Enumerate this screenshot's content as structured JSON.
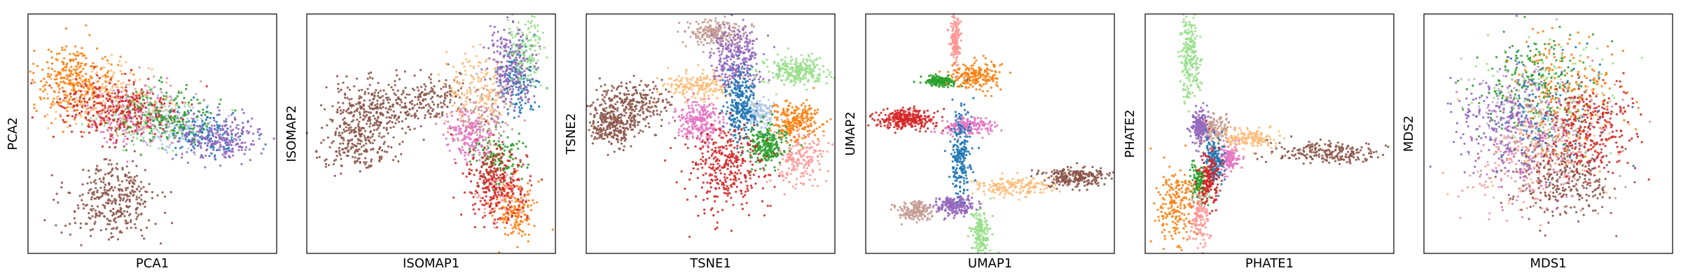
{
  "figure": {
    "palette": {
      "blue": "#1f77b4",
      "light_blue": "#aec7e8",
      "orange": "#ff7f0e",
      "light_orange": "#ffbb78",
      "green": "#2ca02c",
      "light_green": "#98df8a",
      "red": "#d62728",
      "light_red": "#ff9896",
      "purple": "#9467bd",
      "light_purple": "#c5b0d5",
      "brown": "#8c564b",
      "light_brown": "#c49c94",
      "pink": "#e377c2",
      "light_pink": "#f7b6d2",
      "gray": "#7f7f7f",
      "olive": "#bcbd22"
    }
  },
  "chart_data": [
    {
      "type": "scatter",
      "title": "",
      "xlabel": "PCA1",
      "ylabel": "PCA2",
      "xlim": [
        0,
        1
      ],
      "ylim": [
        0,
        1
      ],
      "ticks": "none",
      "grid": false,
      "clusters": [
        {
          "color": "orange",
          "center": [
            0.18,
            0.72
          ],
          "spread": [
            0.08,
            0.07
          ],
          "density": 1.0
        },
        {
          "color": "light_orange",
          "center": [
            0.3,
            0.66
          ],
          "spread": [
            0.1,
            0.06
          ],
          "density": 0.8
        },
        {
          "color": "red",
          "center": [
            0.34,
            0.6
          ],
          "spread": [
            0.12,
            0.07
          ],
          "density": 1.0
        },
        {
          "color": "pink",
          "center": [
            0.42,
            0.58
          ],
          "spread": [
            0.1,
            0.06
          ],
          "density": 0.6
        },
        {
          "color": "green",
          "center": [
            0.55,
            0.58
          ],
          "spread": [
            0.1,
            0.06
          ],
          "density": 0.6
        },
        {
          "color": "light_green",
          "center": [
            0.5,
            0.56
          ],
          "spread": [
            0.1,
            0.05
          ],
          "density": 0.5
        },
        {
          "color": "light_blue",
          "center": [
            0.62,
            0.52
          ],
          "spread": [
            0.09,
            0.05
          ],
          "density": 0.5
        },
        {
          "color": "blue",
          "center": [
            0.72,
            0.5
          ],
          "spread": [
            0.08,
            0.05
          ],
          "density": 0.5
        },
        {
          "color": "purple",
          "center": [
            0.78,
            0.48
          ],
          "spread": [
            0.08,
            0.05
          ],
          "density": 0.8
        },
        {
          "color": "light_brown",
          "center": [
            0.45,
            0.6
          ],
          "spread": [
            0.12,
            0.07
          ],
          "density": 0.4
        },
        {
          "color": "brown",
          "center": [
            0.34,
            0.22
          ],
          "spread": [
            0.09,
            0.08
          ],
          "density": 1.2
        }
      ]
    },
    {
      "type": "scatter",
      "title": "",
      "xlabel": "ISOMAP1",
      "ylabel": "ISOMAP2",
      "xlim": [
        0,
        1
      ],
      "ylim": [
        0,
        1
      ],
      "ticks": "none",
      "grid": false,
      "clusters": [
        {
          "color": "brown",
          "center": [
            0.26,
            0.6
          ],
          "spread": [
            0.09,
            0.06
          ],
          "density": 1.0
        },
        {
          "color": "brown",
          "center": [
            0.2,
            0.46
          ],
          "spread": [
            0.07,
            0.05
          ],
          "density": 0.7
        },
        {
          "color": "brown",
          "center": [
            0.48,
            0.64
          ],
          "spread": [
            0.07,
            0.05
          ],
          "density": 0.6
        },
        {
          "color": "light_orange",
          "center": [
            0.68,
            0.68
          ],
          "spread": [
            0.06,
            0.08
          ],
          "density": 0.6
        },
        {
          "color": "purple",
          "center": [
            0.82,
            0.78
          ],
          "spread": [
            0.05,
            0.08
          ],
          "density": 0.8
        },
        {
          "color": "light_green",
          "center": [
            0.88,
            0.84
          ],
          "spread": [
            0.04,
            0.07
          ],
          "density": 0.6
        },
        {
          "color": "blue",
          "center": [
            0.84,
            0.72
          ],
          "spread": [
            0.04,
            0.07
          ],
          "density": 0.5
        },
        {
          "color": "light_brown",
          "center": [
            0.72,
            0.58
          ],
          "spread": [
            0.06,
            0.07
          ],
          "density": 0.5
        },
        {
          "color": "pink",
          "center": [
            0.66,
            0.5
          ],
          "spread": [
            0.05,
            0.05
          ],
          "density": 0.6
        },
        {
          "color": "green",
          "center": [
            0.76,
            0.4
          ],
          "spread": [
            0.05,
            0.06
          ],
          "density": 0.5
        },
        {
          "color": "red",
          "center": [
            0.76,
            0.3
          ],
          "spread": [
            0.06,
            0.08
          ],
          "density": 1.0
        },
        {
          "color": "orange",
          "center": [
            0.84,
            0.18
          ],
          "spread": [
            0.04,
            0.06
          ],
          "density": 0.5
        },
        {
          "color": "light_red",
          "center": [
            0.8,
            0.24
          ],
          "spread": [
            0.05,
            0.06
          ],
          "density": 0.4
        }
      ]
    },
    {
      "type": "scatter",
      "title": "",
      "xlabel": "TSNE1",
      "ylabel": "TSNE2",
      "xlim": [
        0,
        1
      ],
      "ylim": [
        0,
        1
      ],
      "ticks": "none",
      "grid": false,
      "clusters": [
        {
          "color": "brown",
          "center": [
            0.18,
            0.62
          ],
          "spread": [
            0.08,
            0.05
          ],
          "density": 1.0
        },
        {
          "color": "brown",
          "center": [
            0.1,
            0.53
          ],
          "spread": [
            0.04,
            0.04
          ],
          "density": 0.8
        },
        {
          "color": "light_orange",
          "center": [
            0.46,
            0.7
          ],
          "spread": [
            0.07,
            0.03
          ],
          "density": 0.7
        },
        {
          "color": "light_brown",
          "center": [
            0.52,
            0.92
          ],
          "spread": [
            0.06,
            0.03
          ],
          "density": 0.8
        },
        {
          "color": "purple",
          "center": [
            0.6,
            0.82
          ],
          "spread": [
            0.05,
            0.06
          ],
          "density": 1.0
        },
        {
          "color": "light_green",
          "center": [
            0.84,
            0.76
          ],
          "spread": [
            0.06,
            0.03
          ],
          "density": 0.9
        },
        {
          "color": "blue",
          "center": [
            0.62,
            0.62
          ],
          "spread": [
            0.03,
            0.07
          ],
          "density": 1.0
        },
        {
          "color": "light_blue",
          "center": [
            0.7,
            0.58
          ],
          "spread": [
            0.03,
            0.03
          ],
          "density": 0.5
        },
        {
          "color": "pink",
          "center": [
            0.46,
            0.55
          ],
          "spread": [
            0.05,
            0.04
          ],
          "density": 0.9
        },
        {
          "color": "orange",
          "center": [
            0.84,
            0.55
          ],
          "spread": [
            0.05,
            0.04
          ],
          "density": 0.8
        },
        {
          "color": "green",
          "center": [
            0.72,
            0.45
          ],
          "spread": [
            0.04,
            0.04
          ],
          "density": 0.9
        },
        {
          "color": "light_red",
          "center": [
            0.86,
            0.4
          ],
          "spread": [
            0.05,
            0.06
          ],
          "density": 0.7
        },
        {
          "color": "red",
          "center": [
            0.56,
            0.36
          ],
          "spread": [
            0.08,
            0.09
          ],
          "density": 1.2
        }
      ]
    },
    {
      "type": "scatter",
      "title": "",
      "xlabel": "UMAP1",
      "ylabel": "UMAP2",
      "xlim": [
        0,
        1
      ],
      "ylim": [
        0,
        1
      ],
      "ticks": "none",
      "grid": false,
      "clusters": [
        {
          "color": "light_red",
          "center": [
            0.36,
            0.88
          ],
          "spread": [
            0.01,
            0.06
          ],
          "density": 0.6
        },
        {
          "color": "green",
          "center": [
            0.3,
            0.72
          ],
          "spread": [
            0.03,
            0.01
          ],
          "density": 0.6
        },
        {
          "color": "orange",
          "center": [
            0.44,
            0.74
          ],
          "spread": [
            0.05,
            0.03
          ],
          "density": 0.7
        },
        {
          "color": "red",
          "center": [
            0.16,
            0.56
          ],
          "spread": [
            0.06,
            0.02
          ],
          "density": 1.0
        },
        {
          "color": "pink",
          "center": [
            0.4,
            0.53
          ],
          "spread": [
            0.05,
            0.02
          ],
          "density": 0.7
        },
        {
          "color": "blue",
          "center": [
            0.38,
            0.42
          ],
          "spread": [
            0.02,
            0.1
          ],
          "density": 0.8
        },
        {
          "color": "light_orange",
          "center": [
            0.58,
            0.28
          ],
          "spread": [
            0.08,
            0.02
          ],
          "density": 0.6
        },
        {
          "color": "brown",
          "center": [
            0.84,
            0.32
          ],
          "spread": [
            0.07,
            0.02
          ],
          "density": 0.9
        },
        {
          "color": "purple",
          "center": [
            0.36,
            0.2
          ],
          "spread": [
            0.04,
            0.02
          ],
          "density": 0.7
        },
        {
          "color": "light_brown",
          "center": [
            0.2,
            0.18
          ],
          "spread": [
            0.04,
            0.02
          ],
          "density": 0.6
        },
        {
          "color": "light_green",
          "center": [
            0.46,
            0.08
          ],
          "spread": [
            0.02,
            0.05
          ],
          "density": 0.6
        }
      ]
    },
    {
      "type": "scatter",
      "title": "",
      "xlabel": "PHATE1",
      "ylabel": "PHATE2",
      "xlim": [
        0,
        1
      ],
      "ylim": [
        0,
        1
      ],
      "ticks": "none",
      "grid": false,
      "clusters": [
        {
          "color": "light_green",
          "center": [
            0.18,
            0.82
          ],
          "spread": [
            0.02,
            0.1
          ],
          "density": 0.8
        },
        {
          "color": "purple",
          "center": [
            0.22,
            0.52
          ],
          "spread": [
            0.02,
            0.04
          ],
          "density": 0.6
        },
        {
          "color": "light_brown",
          "center": [
            0.28,
            0.52
          ],
          "spread": [
            0.03,
            0.03
          ],
          "density": 0.5
        },
        {
          "color": "light_orange",
          "center": [
            0.4,
            0.48
          ],
          "spread": [
            0.06,
            0.02
          ],
          "density": 0.6
        },
        {
          "color": "brown",
          "center": [
            0.74,
            0.42
          ],
          "spread": [
            0.12,
            0.02
          ],
          "density": 0.8
        },
        {
          "color": "pink",
          "center": [
            0.34,
            0.4
          ],
          "spread": [
            0.02,
            0.03
          ],
          "density": 0.5
        },
        {
          "color": "blue",
          "center": [
            0.28,
            0.38
          ],
          "spread": [
            0.02,
            0.05
          ],
          "density": 0.6
        },
        {
          "color": "red",
          "center": [
            0.26,
            0.32
          ],
          "spread": [
            0.02,
            0.06
          ],
          "density": 0.6
        },
        {
          "color": "green",
          "center": [
            0.22,
            0.3
          ],
          "spread": [
            0.02,
            0.04
          ],
          "density": 0.5
        },
        {
          "color": "orange",
          "center": [
            0.12,
            0.2
          ],
          "spread": [
            0.04,
            0.08
          ],
          "density": 0.7
        },
        {
          "color": "light_red",
          "center": [
            0.22,
            0.14
          ],
          "spread": [
            0.02,
            0.06
          ],
          "density": 0.5
        }
      ]
    },
    {
      "type": "scatter",
      "title": "",
      "xlabel": "MDS1",
      "ylabel": "MDS2",
      "xlim": [
        0,
        1
      ],
      "ylim": [
        0,
        1
      ],
      "ticks": "none",
      "grid": false,
      "clusters": [
        {
          "color": "purple",
          "center": [
            0.32,
            0.54
          ],
          "spread": [
            0.1,
            0.12
          ],
          "density": 0.8
        },
        {
          "color": "light_purple",
          "center": [
            0.4,
            0.6
          ],
          "spread": [
            0.12,
            0.12
          ],
          "density": 0.5
        },
        {
          "color": "green",
          "center": [
            0.44,
            0.72
          ],
          "spread": [
            0.1,
            0.1
          ],
          "density": 0.6
        },
        {
          "color": "light_green",
          "center": [
            0.5,
            0.66
          ],
          "spread": [
            0.12,
            0.12
          ],
          "density": 0.5
        },
        {
          "color": "blue",
          "center": [
            0.48,
            0.6
          ],
          "spread": [
            0.12,
            0.12
          ],
          "density": 0.5
        },
        {
          "color": "orange",
          "center": [
            0.58,
            0.68
          ],
          "spread": [
            0.12,
            0.12
          ],
          "density": 0.6
        },
        {
          "color": "light_orange",
          "center": [
            0.5,
            0.5
          ],
          "spread": [
            0.12,
            0.12
          ],
          "density": 0.5
        },
        {
          "color": "pink",
          "center": [
            0.46,
            0.46
          ],
          "spread": [
            0.12,
            0.12
          ],
          "density": 0.5
        },
        {
          "color": "light_brown",
          "center": [
            0.52,
            0.44
          ],
          "spread": [
            0.12,
            0.12
          ],
          "density": 0.5
        },
        {
          "color": "red",
          "center": [
            0.66,
            0.52
          ],
          "spread": [
            0.09,
            0.1
          ],
          "density": 1.0
        },
        {
          "color": "brown",
          "center": [
            0.56,
            0.3
          ],
          "spread": [
            0.1,
            0.08
          ],
          "density": 0.9
        },
        {
          "color": "light_red",
          "center": [
            0.4,
            0.34
          ],
          "spread": [
            0.12,
            0.1
          ],
          "density": 0.5
        }
      ]
    }
  ]
}
